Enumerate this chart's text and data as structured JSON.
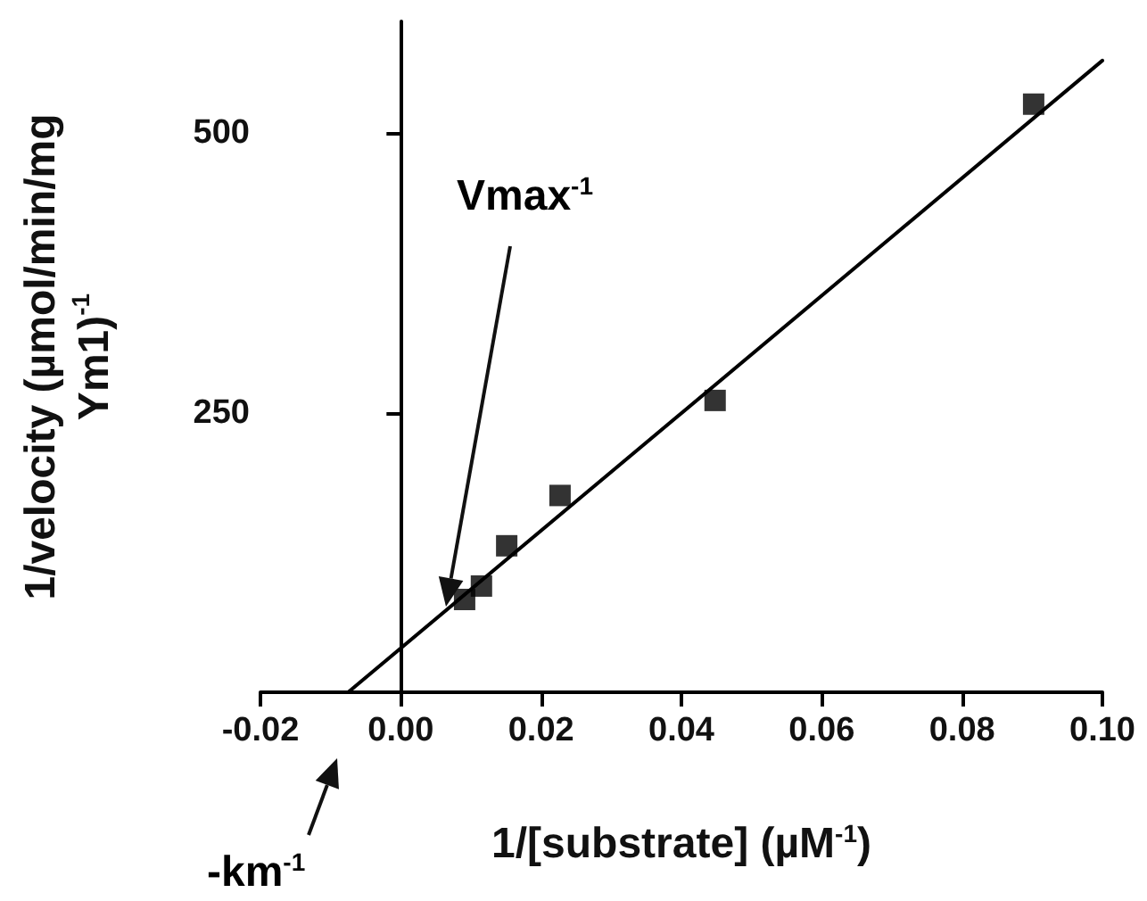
{
  "chart_data": {
    "type": "scatter",
    "xlabel": "1/[substrate] (µM$^{-1}$)",
    "ylabel": "1/velocity (µmol/min/mg\nYm1)$^{-1}$",
    "series": [
      {
        "color": "#000000",
        "marker": "square",
        "x": [
          0.0091,
          0.0115,
          0.0151,
          0.0227,
          0.0448,
          0.0902
        ],
        "values": [
          83,
          95,
          131,
          176,
          261,
          526
        ]
      },
      {
        "type": "line",
        "color": "#000000",
        "marker": "none",
        "line_style": "solid",
        "x": [
          -0.0075,
          0.1
        ],
        "values": [
          0,
          565
        ]
      }
    ],
    "xlim": [
      -0.02,
      0.1
    ],
    "xticks": [
      {
        "value": -0.02,
        "label": "-0.02"
      },
      {
        "value": 0,
        "label": "0.00"
      },
      {
        "value": 0.02,
        "label": "0.02"
      },
      {
        "value": 0.04,
        "label": "0.04"
      },
      {
        "value": 0.06,
        "label": "0.06"
      },
      {
        "value": 0.08,
        "label": "0.08"
      },
      {
        "value": 0.1,
        "label": "0.10"
      }
    ],
    "ylim": [
      0,
      600
    ],
    "yticks": [
      250,
      500
    ],
    "annotations": [
      "Vmax$^{-1}$",
      "-km$^{-1}$"
    ]
  }
}
